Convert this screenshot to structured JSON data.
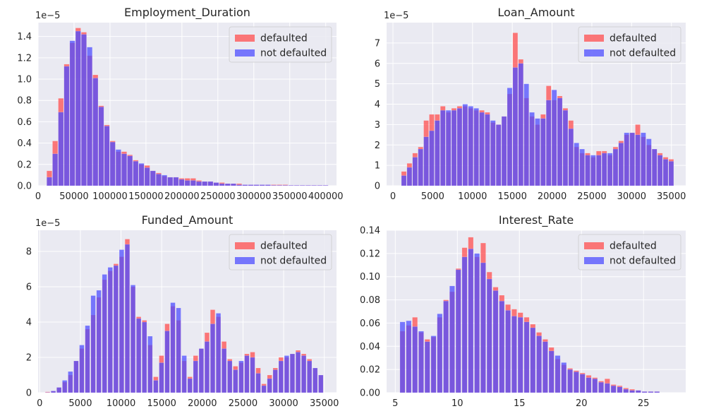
{
  "colors": {
    "defaulted": "#ff4d4d",
    "not_defaulted": "#4d4dff",
    "overlap": "#7a3fc4",
    "axes_bg": "#eaeaf2",
    "grid": "#ffffff"
  },
  "chart_data": [
    {
      "type": "bar",
      "title": "Employment_Duration",
      "y_scale_label": "1e−5",
      "xlim": [
        0,
        415000
      ],
      "ylim": [
        0,
        1.53
      ],
      "xticks": [
        0,
        50000,
        100000,
        150000,
        200000,
        250000,
        300000,
        350000,
        400000
      ],
      "xtick_labels": [
        "0",
        "50000",
        "100000",
        "150000",
        "200000",
        "250000",
        "300000",
        "350000",
        "400000"
      ],
      "yticks": [
        0,
        0.2,
        0.4,
        0.6,
        0.8,
        1.0,
        1.2,
        1.4
      ],
      "ytick_labels": [
        "0.0",
        "0.2",
        "0.4",
        "0.6",
        "0.8",
        "1.0",
        "1.2",
        "1.4"
      ],
      "bin_width": 7900,
      "legend": [
        "defaulted",
        "not defaulted"
      ],
      "legend_position": "upper right",
      "series": [
        {
          "name": "defaulted",
          "x": [
            16000,
            24000,
            32000,
            40000,
            48000,
            56000,
            64000,
            72000,
            80000,
            88000,
            96000,
            104000,
            112000,
            120000,
            128000,
            136000,
            144000,
            152000,
            160000,
            168000,
            176000,
            184000,
            192000,
            200000,
            208000,
            216000,
            224000,
            232000,
            240000,
            248000,
            256000,
            264000,
            272000,
            280000,
            288000,
            296000,
            304000,
            312000,
            320000,
            328000,
            336000,
            344000,
            352000,
            360000,
            368000,
            376000,
            384000,
            392000,
            400000
          ],
          "values": [
            0.14,
            0.42,
            0.82,
            1.14,
            1.34,
            1.48,
            1.44,
            1.22,
            1.04,
            0.75,
            0.57,
            0.42,
            0.32,
            0.32,
            0.29,
            0.24,
            0.2,
            0.19,
            0.14,
            0.12,
            0.09,
            0.08,
            0.08,
            0.07,
            0.07,
            0.07,
            0.05,
            0.04,
            0.04,
            0.03,
            0.03,
            0.02,
            0.02,
            0.02,
            0.01,
            0.01,
            0.01,
            0.01,
            0.01,
            0.01,
            0.01,
            0.01,
            0.005,
            0.005,
            0.005,
            0.005,
            0.005,
            0.005,
            0.005
          ]
        },
        {
          "name": "not defaulted",
          "x": [
            16000,
            24000,
            32000,
            40000,
            48000,
            56000,
            64000,
            72000,
            80000,
            88000,
            96000,
            104000,
            112000,
            120000,
            128000,
            136000,
            144000,
            152000,
            160000,
            168000,
            176000,
            184000,
            192000,
            200000,
            208000,
            216000,
            224000,
            232000,
            240000,
            248000,
            256000,
            264000,
            272000,
            280000,
            288000,
            296000,
            304000,
            312000,
            320000,
            328000,
            336000,
            344000,
            352000,
            360000,
            368000,
            376000,
            384000,
            392000,
            400000
          ],
          "values": [
            0.08,
            0.3,
            0.69,
            1.12,
            1.36,
            1.45,
            1.42,
            1.3,
            1.01,
            0.74,
            0.56,
            0.41,
            0.34,
            0.3,
            0.28,
            0.23,
            0.21,
            0.17,
            0.14,
            0.11,
            0.1,
            0.08,
            0.08,
            0.06,
            0.05,
            0.05,
            0.04,
            0.04,
            0.04,
            0.03,
            0.02,
            0.02,
            0.02,
            0.01,
            0.01,
            0.01,
            0.01,
            0.01,
            0.01,
            0.005,
            0.005,
            0.005,
            0.005,
            0.005,
            0.005,
            0.005,
            0.005,
            0.005,
            0.005
          ]
        }
      ]
    },
    {
      "type": "bar",
      "title": "Loan_Amount",
      "y_scale_label": "1e−5",
      "xlim": [
        -800,
        36800
      ],
      "ylim": [
        0,
        8
      ],
      "xticks": [
        0,
        5000,
        10000,
        15000,
        20000,
        25000,
        30000,
        35000
      ],
      "xtick_labels": [
        "0",
        "5000",
        "10000",
        "15000",
        "20000",
        "25000",
        "30000",
        "35000"
      ],
      "yticks": [
        0,
        1,
        2,
        3,
        4,
        5,
        6,
        7
      ],
      "ytick_labels": [
        "0",
        "1",
        "2",
        "3",
        "4",
        "5",
        "6",
        "7"
      ],
      "bin_width": 680,
      "legend": [
        "defaulted",
        "not defaulted"
      ],
      "legend_position": "upper right",
      "series": [
        {
          "name": "defaulted",
          "x": [
            1400,
            2100,
            2800,
            3500,
            4200,
            4900,
            5600,
            6300,
            7000,
            7700,
            8400,
            9100,
            9800,
            10500,
            11200,
            11900,
            12600,
            13300,
            14000,
            14700,
            15400,
            16100,
            16800,
            17500,
            18200,
            18900,
            19600,
            20300,
            21000,
            21700,
            22400,
            23100,
            23800,
            24500,
            25200,
            25900,
            26600,
            27300,
            28000,
            28700,
            29400,
            30100,
            30800,
            31500,
            32200,
            32900,
            33600,
            34300,
            35000
          ],
          "values": [
            0.7,
            1.1,
            1.6,
            1.9,
            3.2,
            3.5,
            3.5,
            3.9,
            3.6,
            3.8,
            3.9,
            3.9,
            3.8,
            3.7,
            3.7,
            3.6,
            3.1,
            3.0,
            3.4,
            4.5,
            7.5,
            6.2,
            4.3,
            3.4,
            3.0,
            3.5,
            4.9,
            4.2,
            4.4,
            3.8,
            3.2,
            1.9,
            1.6,
            1.6,
            1.4,
            1.7,
            1.7,
            1.5,
            1.9,
            2.2,
            2.5,
            2.6,
            3.0,
            2.4,
            2.0,
            1.8,
            1.6,
            1.4,
            1.3
          ]
        },
        {
          "name": "not defaulted",
          "x": [
            1400,
            2100,
            2800,
            3500,
            4200,
            4900,
            5600,
            6300,
            7000,
            7700,
            8400,
            9100,
            9800,
            10500,
            11200,
            11900,
            12600,
            13300,
            14000,
            14700,
            15400,
            16100,
            16800,
            17500,
            18200,
            18900,
            19600,
            20300,
            21000,
            21700,
            22400,
            23100,
            23800,
            24500,
            25200,
            25900,
            26600,
            27300,
            28000,
            28700,
            29400,
            30100,
            30800,
            31500,
            32200,
            32900,
            33600,
            34300,
            35000
          ],
          "values": [
            0.5,
            0.9,
            1.4,
            1.8,
            2.4,
            2.7,
            3.2,
            3.7,
            3.7,
            3.7,
            3.8,
            4.0,
            3.9,
            3.8,
            3.6,
            3.5,
            3.2,
            3.0,
            3.4,
            4.8,
            5.8,
            6.0,
            5.0,
            3.6,
            3.3,
            3.3,
            4.2,
            4.7,
            4.3,
            3.7,
            2.8,
            2.1,
            1.8,
            1.5,
            1.5,
            1.5,
            1.6,
            1.6,
            1.8,
            2.1,
            2.6,
            2.6,
            2.5,
            2.6,
            2.3,
            1.8,
            1.5,
            1.3,
            1.2
          ]
        }
      ]
    },
    {
      "type": "bar",
      "title": "Funded_Amount",
      "y_scale_label": "1e−5",
      "xlim": [
        -200,
        36500
      ],
      "ylim": [
        0,
        9.2
      ],
      "xticks": [
        0,
        5000,
        10000,
        15000,
        20000,
        25000,
        30000,
        35000
      ],
      "xtick_labels": [
        "0",
        "5000",
        "10000",
        "15000",
        "20000",
        "25000",
        "30000",
        "35000"
      ],
      "yticks": [
        0,
        2,
        4,
        6,
        8
      ],
      "ytick_labels": [
        "0",
        "2",
        "4",
        "6",
        "8"
      ],
      "bin_width": 630,
      "legend": [
        "defaulted",
        "not defaulted"
      ],
      "legend_position": "upper right",
      "series": [
        {
          "name": "defaulted",
          "x": [
            1000,
            1700,
            2400,
            3100,
            3800,
            4500,
            5200,
            5900,
            6600,
            7300,
            8000,
            8700,
            9400,
            10100,
            10800,
            11500,
            12200,
            12900,
            13600,
            14300,
            15000,
            15700,
            16400,
            17100,
            17800,
            18500,
            19200,
            19900,
            20600,
            21300,
            22000,
            22700,
            23400,
            24100,
            24800,
            25500,
            26200,
            26900,
            27600,
            28300,
            29000,
            29700,
            30400,
            31100,
            31800,
            32500,
            33200,
            33900,
            34600
          ],
          "values": [
            0.05,
            0.1,
            0.3,
            0.6,
            1.0,
            1.8,
            2.5,
            3.6,
            4.4,
            5.4,
            6.4,
            6.9,
            7.3,
            7.7,
            8.7,
            6.0,
            4.3,
            4.1,
            2.7,
            0.9,
            2.1,
            3.9,
            4.9,
            4.1,
            1.8,
            0.9,
            2.1,
            2.5,
            3.4,
            4.7,
            4.3,
            2.9,
            1.9,
            1.5,
            1.7,
            2.2,
            2.3,
            1.4,
            0.5,
            1.0,
            1.4,
            2.0,
            2.0,
            2.2,
            2.4,
            2.2,
            1.9,
            1.4,
            1.0
          ]
        },
        {
          "name": "not defaulted",
          "x": [
            1000,
            1700,
            2400,
            3100,
            3800,
            4500,
            5200,
            5900,
            6600,
            7300,
            8000,
            8700,
            9400,
            10100,
            10800,
            11500,
            12200,
            12900,
            13600,
            14300,
            15000,
            15700,
            16400,
            17100,
            17800,
            18500,
            19200,
            19900,
            20600,
            21300,
            22000,
            22700,
            23400,
            24100,
            24800,
            25500,
            26200,
            26900,
            27600,
            28300,
            29000,
            29700,
            30400,
            31100,
            31800,
            32500,
            33200,
            33900,
            34600
          ],
          "values": [
            0.02,
            0.1,
            0.3,
            0.7,
            1.2,
            1.8,
            2.7,
            3.8,
            5.5,
            5.8,
            6.7,
            7.1,
            7.2,
            8.1,
            8.4,
            6.1,
            4.2,
            4.0,
            3.2,
            0.7,
            1.7,
            3.5,
            5.1,
            4.8,
            2.1,
            0.8,
            1.8,
            2.5,
            2.9,
            3.9,
            4.5,
            2.5,
            1.8,
            1.3,
            1.8,
            2.1,
            2.0,
            1.1,
            0.4,
            0.8,
            1.3,
            1.8,
            2.1,
            2.2,
            2.3,
            2.1,
            1.8,
            1.4,
            1.0
          ]
        }
      ]
    },
    {
      "type": "bar",
      "title": "Interest_Rate",
      "y_scale_label": "",
      "xlim": [
        4.3,
        28.4
      ],
      "ylim": [
        0,
        0.14
      ],
      "xticks": [
        5,
        10,
        15,
        20,
        25
      ],
      "xtick_labels": [
        "5",
        "10",
        "15",
        "20",
        "25"
      ],
      "yticks": [
        0,
        0.02,
        0.04,
        0.06,
        0.08,
        0.1,
        0.12,
        0.14
      ],
      "ytick_labels": [
        "0.00",
        "0.02",
        "0.04",
        "0.06",
        "0.08",
        "0.10",
        "0.12",
        "0.14"
      ],
      "bin_width": 0.45,
      "legend": [
        "defaulted",
        "not defaulted"
      ],
      "legend_position": "upper right",
      "series": [
        {
          "name": "defaulted",
          "x": [
            5.6,
            6.1,
            6.6,
            7.1,
            7.6,
            8.1,
            8.6,
            9.1,
            9.6,
            10.1,
            10.6,
            11.1,
            11.6,
            12.1,
            12.6,
            13.1,
            13.6,
            14.1,
            14.6,
            15.1,
            15.6,
            16.1,
            16.6,
            17.1,
            17.6,
            18.1,
            18.6,
            19.1,
            19.6,
            20.1,
            20.6,
            21.1,
            21.6,
            22.1,
            22.6,
            23.1,
            23.6,
            24.1,
            24.6,
            25.1,
            25.6,
            26.1
          ],
          "values": [
            0.053,
            0.058,
            0.065,
            0.052,
            0.046,
            0.048,
            0.065,
            0.08,
            0.087,
            0.107,
            0.125,
            0.134,
            0.117,
            0.129,
            0.104,
            0.091,
            0.084,
            0.076,
            0.072,
            0.069,
            0.065,
            0.059,
            0.052,
            0.046,
            0.039,
            0.029,
            0.024,
            0.021,
            0.019,
            0.017,
            0.015,
            0.013,
            0.01,
            0.012,
            0.007,
            0.006,
            0.004,
            0.003,
            0.002,
            0.001,
            0.001,
            0.001
          ]
        },
        {
          "name": "not defaulted",
          "x": [
            5.6,
            6.1,
            6.6,
            7.1,
            7.6,
            8.1,
            8.6,
            9.1,
            9.6,
            10.1,
            10.6,
            11.1,
            11.6,
            12.1,
            12.6,
            13.1,
            13.6,
            14.1,
            14.6,
            15.1,
            15.6,
            16.1,
            16.6,
            17.1,
            17.6,
            18.1,
            18.6,
            19.1,
            19.6,
            20.1,
            20.6,
            21.1,
            21.6,
            22.1,
            22.6,
            23.1,
            23.6,
            24.1,
            24.6,
            25.1,
            25.6,
            26.1
          ],
          "values": [
            0.061,
            0.062,
            0.057,
            0.053,
            0.044,
            0.049,
            0.068,
            0.079,
            0.092,
            0.106,
            0.117,
            0.124,
            0.12,
            0.112,
            0.098,
            0.088,
            0.079,
            0.071,
            0.066,
            0.065,
            0.061,
            0.056,
            0.049,
            0.044,
            0.036,
            0.032,
            0.026,
            0.02,
            0.018,
            0.016,
            0.013,
            0.012,
            0.009,
            0.008,
            0.006,
            0.005,
            0.003,
            0.002,
            0.002,
            0.001,
            0.001,
            0.001
          ]
        }
      ]
    }
  ]
}
